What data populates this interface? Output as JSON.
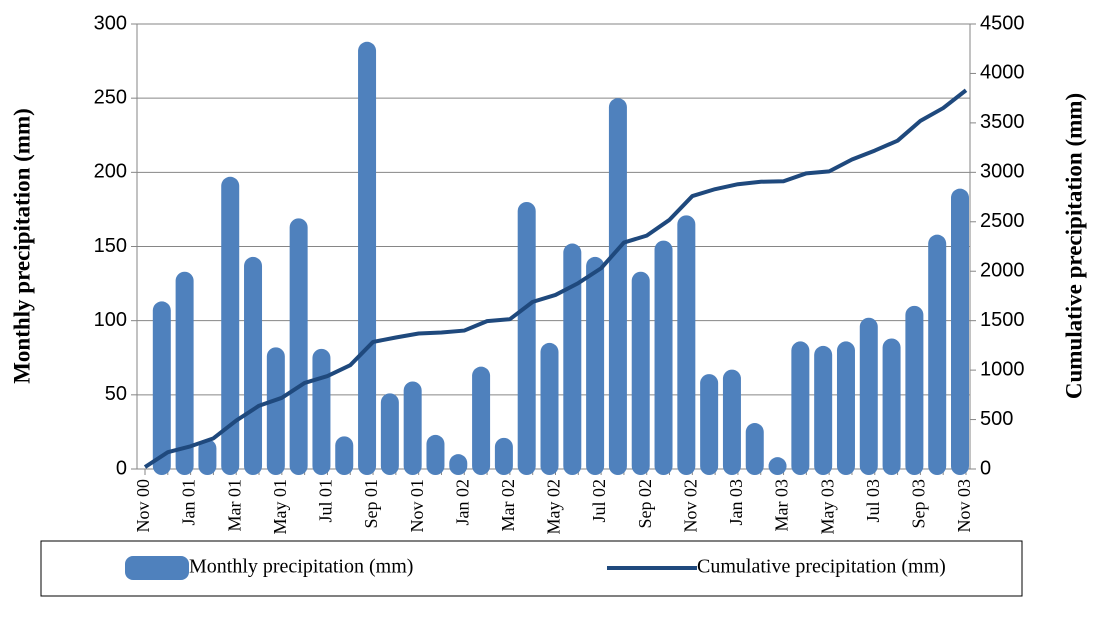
{
  "chart_data": {
    "type": "bar_line",
    "y_label": "Monthly precipitation (mm)",
    "y2_label": "Cumulative precipitation (mm)",
    "categories": [
      "Nov 00",
      null,
      "Jan 01",
      null,
      "Mar 01",
      null,
      "May 01",
      null,
      "Jul 01",
      null,
      "Sep 01",
      null,
      "Nov 01",
      null,
      "Jan 02",
      null,
      "Mar 02",
      null,
      "May 02",
      null,
      "Jul 02",
      null,
      "Sep 02",
      null,
      "Nov 02",
      null,
      "Jan 03",
      null,
      "Mar 03",
      null,
      "May 03",
      null,
      "Jul 03",
      null,
      "Sep 03",
      null,
      "Nov 03"
    ],
    "series": [
      {
        "name": "Monthly precipitation (mm)",
        "color": "#4f81bd",
        "kind": "bar",
        "values": [
          null,
          113,
          133,
          20,
          197,
          143,
          82,
          169,
          81,
          22,
          288,
          51,
          59,
          23,
          10,
          69,
          21,
          180,
          85,
          152,
          143,
          250,
          133,
          154,
          171,
          64,
          67,
          31,
          8,
          86,
          83,
          86,
          102,
          88,
          110,
          158,
          189
        ]
      },
      {
        "name": "Cumulative precipitation (mm)",
        "color": "#1f497d",
        "kind": "line",
        "axis": "y2",
        "values": [
          20,
          170,
          230,
          310,
          490,
          640,
          720,
          870,
          940,
          1050,
          1285,
          1330,
          1370,
          1380,
          1400,
          1495,
          1515,
          1690,
          1760,
          1880,
          2030,
          2290,
          2360,
          2520,
          2760,
          2830,
          2880,
          2905,
          2910,
          2990,
          3010,
          3130,
          3220,
          3320,
          3520,
          3650,
          3830
        ]
      }
    ],
    "ylim": [
      0,
      300
    ],
    "yticks": [
      0,
      50,
      100,
      150,
      200,
      250,
      300
    ],
    "y2lim": [
      0,
      4500
    ],
    "y2ticks": [
      0,
      500,
      1000,
      1500,
      2000,
      2500,
      3000,
      3500,
      4000,
      4500
    ],
    "grid": true,
    "legend": "bottom"
  }
}
